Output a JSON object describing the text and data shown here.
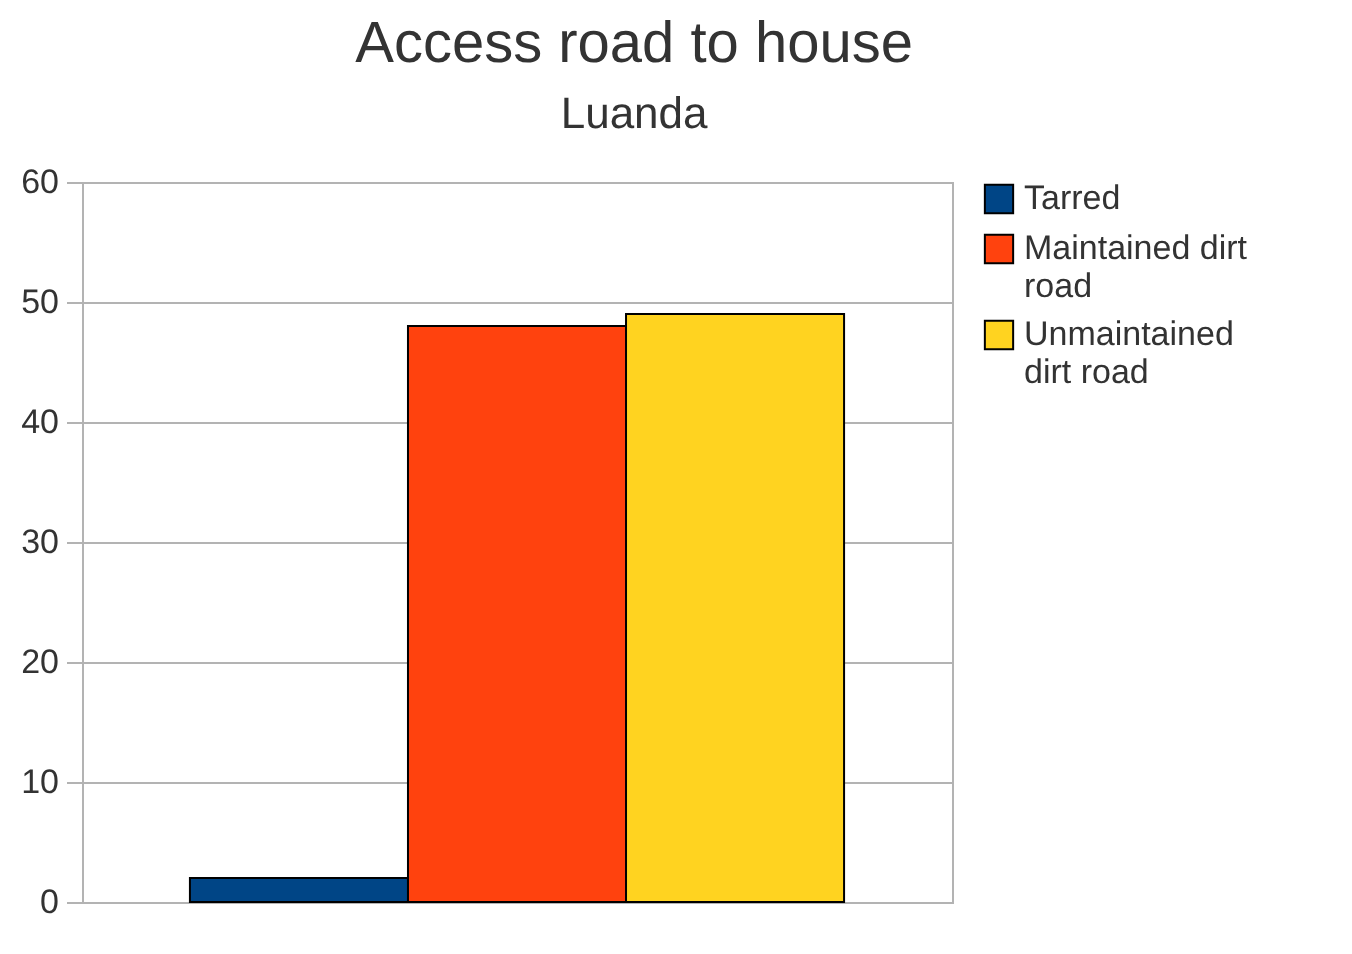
{
  "chart_data": {
    "type": "bar",
    "title": "Access road to house",
    "subtitle": "Luanda",
    "categories": [
      null
    ],
    "series": [
      {
        "name": "Tarred",
        "color": "#004586",
        "values": [
          2
        ]
      },
      {
        "name": "Maintained dirt road",
        "color": "#ff420e",
        "values": [
          48
        ]
      },
      {
        "name": "Unmaintained dirt road",
        "color": "#ffd320",
        "values": [
          49
        ]
      }
    ],
    "ylim": [
      0,
      60
    ],
    "yticks": [
      0,
      10,
      20,
      30,
      40,
      50,
      60
    ],
    "grid": "y",
    "legend": "right"
  }
}
